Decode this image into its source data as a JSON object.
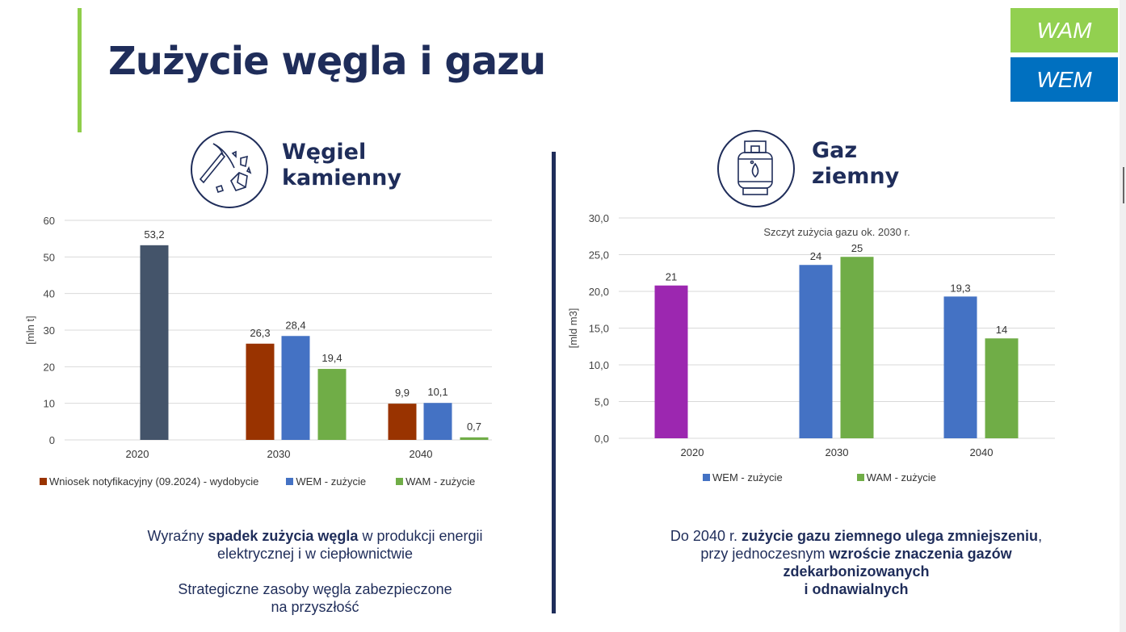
{
  "title": "Zużycie węgla i gazu",
  "badges": {
    "wam": "WAM",
    "wem": "WEM"
  },
  "coal": {
    "title_line1": "Węgiel",
    "title_line2": "kamienny",
    "desc1_pre": "Wyraźny ",
    "desc1_bold": "spadek zużycia węgla",
    "desc1_post": " w produkcji energii",
    "desc1_line2": "elektrycznej i w ciepłownictwie",
    "desc2_line1": "Strategiczne zasoby węgla zabezpieczone",
    "desc2_line2": "na przyszłość"
  },
  "gas": {
    "title_line1": "Gaz",
    "title_line2": "ziemny",
    "desc_pre": "Do 2040 r. ",
    "desc_bold1": "zużycie gazu ziemnego ulega zmniejszeniu",
    "desc_mid": "przy jednoczesnym ",
    "desc_bold2": "wzroście znaczenia gazów",
    "desc_bold3": "zdekarbonizowanych",
    "desc_bold4": "i odnawialnych"
  },
  "chart_data": [
    {
      "type": "bar",
      "title": "",
      "ylabel": "[mln t]",
      "ylim": [
        0,
        60
      ],
      "yticks": [
        "0",
        "10",
        "20",
        "30",
        "40",
        "50",
        "60"
      ],
      "categories": [
        "2020",
        "2030",
        "2040"
      ],
      "series": [
        {
          "name": "",
          "color": "#44546a",
          "values": [
            53.2,
            null,
            null
          ],
          "labels": [
            "53,2",
            "",
            ""
          ]
        },
        {
          "name": "Wniosek notyfikacyjny (09.2024) - wydobycie",
          "color": "#993300",
          "values": [
            null,
            26.3,
            9.9
          ],
          "labels": [
            "",
            "26,3",
            "9,9"
          ]
        },
        {
          "name": "WEM - zużycie",
          "color": "#4472c4",
          "values": [
            null,
            28.4,
            10.1
          ],
          "labels": [
            "",
            "28,4",
            "10,1"
          ]
        },
        {
          "name": "WAM - zużycie",
          "color": "#70ad47",
          "values": [
            null,
            19.4,
            0.7
          ],
          "labels": [
            "",
            "19,4",
            "0,7"
          ]
        }
      ],
      "legend": "bottom",
      "grid": true
    },
    {
      "type": "bar",
      "title": "",
      "annotation": "Szczyt zużycia gazu ok. 2030 r.",
      "ylabel": "[mld m3]",
      "ylim": [
        0,
        30
      ],
      "yticks": [
        "0,0",
        "5,0",
        "10,0",
        "15,0",
        "20,0",
        "25,0",
        "30,0"
      ],
      "categories": [
        "2020",
        "2030",
        "2040"
      ],
      "series": [
        {
          "name": "WEM - zużycie",
          "color": "#4472c4",
          "values": [
            20.8,
            23.6,
            19.3
          ],
          "labels": [
            "21",
            "24",
            "19,3"
          ],
          "colors": [
            "#9c27b0",
            "#4472c4",
            "#4472c4"
          ]
        },
        {
          "name": "WAM - zużycie",
          "color": "#70ad47",
          "values": [
            null,
            24.7,
            13.6
          ],
          "labels": [
            "",
            "25",
            "14"
          ]
        }
      ],
      "legend": "bottom",
      "grid": true
    }
  ]
}
